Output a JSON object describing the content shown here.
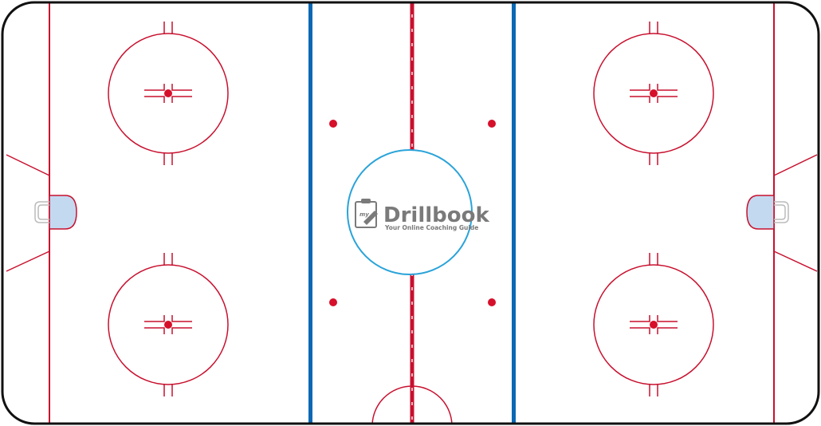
{
  "logo": {
    "title": "Drillbook",
    "tagline": "Your Online Coaching Guide",
    "prefix": "my"
  },
  "colors": {
    "board": "#111111",
    "red_line": "#c8102e",
    "blue_line": "#0a68b4",
    "center_circle": "#2aa3d9",
    "crease_fill": "#c3d9f0",
    "net": "#bbbbbb",
    "logo_text": "#7a7a7a",
    "dot": "#d6102a"
  }
}
